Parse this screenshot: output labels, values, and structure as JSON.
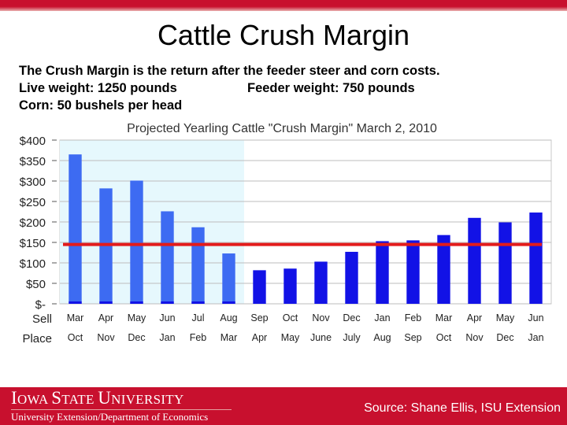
{
  "slide": {
    "title": "Cattle Crush Margin",
    "line1": "The Crush Margin is the return after the feeder steer and corn costs.",
    "line2a": "Live weight:  1250 pounds",
    "line2b": "Feeder weight:  750 pounds",
    "line3": "Corn:  50 bushels per head"
  },
  "footer": {
    "university_big1": "I",
    "university_small1": "OWA ",
    "university_big2": "S",
    "university_small2": "TATE ",
    "university_big3": "U",
    "university_small3": "NIVERSITY",
    "department": "University Extension/Department of Economics",
    "source": "Source: Shane Ellis, ISU Extension"
  },
  "colors": {
    "accent": "#c8102e",
    "bar_highlight": "#3d6bf2",
    "bar_normal": "#1212e6",
    "reference_line": "#e31b1b",
    "shade": "#e6f8fd"
  },
  "chart_data": {
    "type": "bar",
    "title": "Projected Yearling Cattle \"Crush Margin\" March 2, 2010",
    "categories": [
      "Mar",
      "Apr",
      "May",
      "Jun",
      "Jul",
      "Aug",
      "Sep",
      "Oct",
      "Nov",
      "Dec",
      "Jan",
      "Feb",
      "Mar",
      "Apr",
      "May",
      "Jun"
    ],
    "place_categories": [
      "Oct",
      "Nov",
      "Dec",
      "Jan",
      "Feb",
      "Mar",
      "Apr",
      "May",
      "June",
      "July",
      "Aug",
      "Sep",
      "Oct",
      "Nov",
      "Dec",
      "Jan"
    ],
    "row_labels": [
      "Sell",
      "Place"
    ],
    "values": [
      365,
      282,
      301,
      226,
      187,
      123,
      82,
      86,
      103,
      127,
      153,
      155,
      168,
      210,
      199,
      223
    ],
    "highlighted_count": 6,
    "reference_value": 145,
    "ylim": [
      0,
      400
    ],
    "yticks": [
      0,
      50,
      100,
      150,
      200,
      250,
      300,
      350,
      400
    ],
    "ytick_labels": [
      "$-",
      "$50",
      "$100",
      "$150",
      "$200",
      "$250",
      "$300",
      "$350",
      "$400"
    ],
    "grid": true,
    "xlabel": "",
    "ylabel": ""
  }
}
